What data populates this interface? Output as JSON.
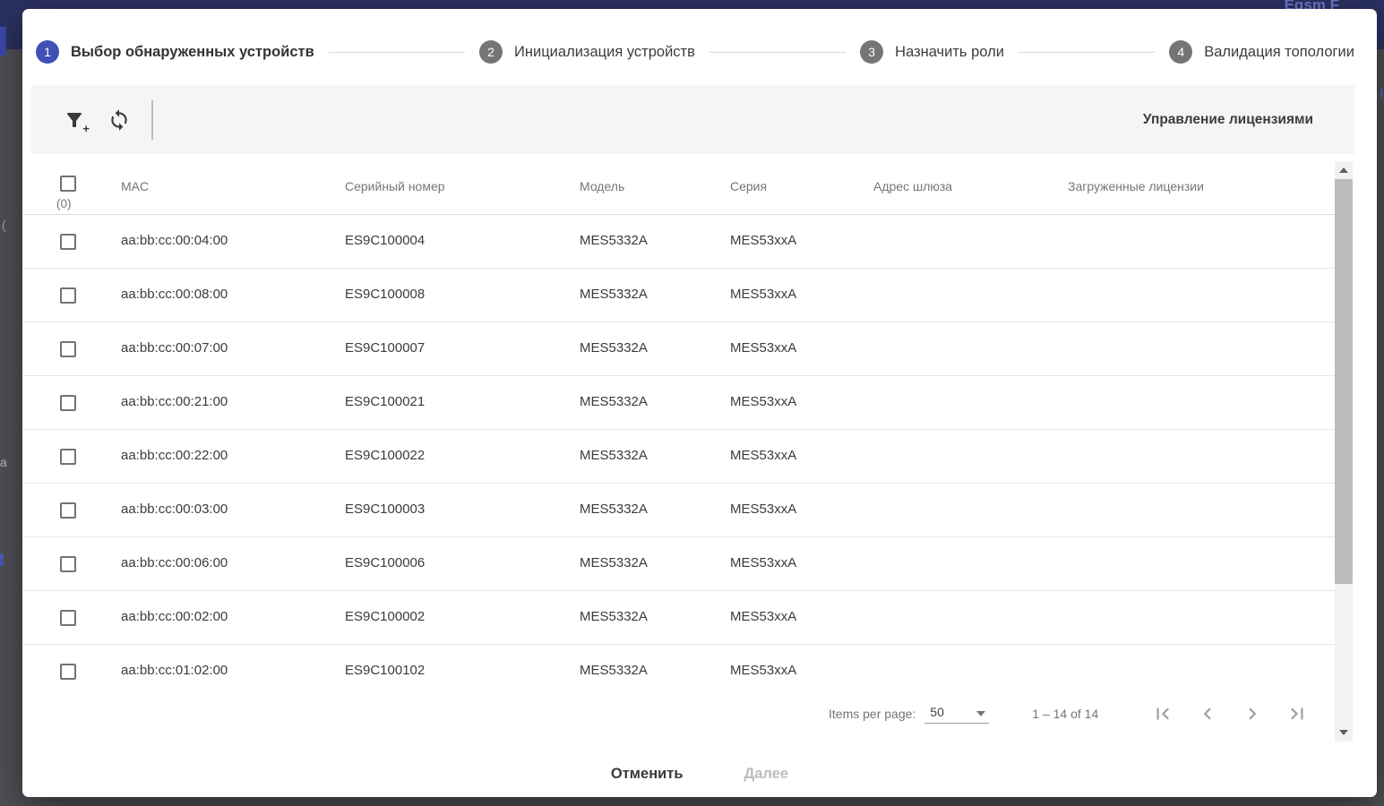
{
  "colors": {
    "accent": "#3f51b5",
    "step_inactive": "#757575",
    "toolbar_bg": "#f5f5f5",
    "topbar_bg": "#2b3160"
  },
  "backdrop": {
    "topbar_fragment": "Eqsm F",
    "edge_fragments": {
      "left_paren": "(",
      "left_a": "a",
      "right_i": "i"
    }
  },
  "stepper": {
    "steps": [
      {
        "number": "1",
        "label": "Выбор обнаруженных устройств",
        "active": true
      },
      {
        "number": "2",
        "label": "Инициализация устройств",
        "active": false
      },
      {
        "number": "3",
        "label": "Назначить роли",
        "active": false
      },
      {
        "number": "4",
        "label": "Валидация топологии",
        "active": false
      }
    ]
  },
  "toolbar": {
    "icons": [
      "filter-add-icon",
      "refresh-icon"
    ],
    "license_button_label": "Управление лицензиями"
  },
  "table": {
    "selected_count": "(0)",
    "columns": [
      "MAC",
      "Серийный номер",
      "Модель",
      "Серия",
      "Адрес шлюза",
      "Загруженные лицензии"
    ],
    "rows": [
      {
        "mac": "aa:bb:cc:00:04:00",
        "serial": "ES9C100004",
        "model": "MES5332A",
        "series": "MES53xxA",
        "gateway": "",
        "licenses": ""
      },
      {
        "mac": "aa:bb:cc:00:08:00",
        "serial": "ES9C100008",
        "model": "MES5332A",
        "series": "MES53xxA",
        "gateway": "",
        "licenses": ""
      },
      {
        "mac": "aa:bb:cc:00:07:00",
        "serial": "ES9C100007",
        "model": "MES5332A",
        "series": "MES53xxA",
        "gateway": "",
        "licenses": ""
      },
      {
        "mac": "aa:bb:cc:00:21:00",
        "serial": "ES9C100021",
        "model": "MES5332A",
        "series": "MES53xxA",
        "gateway": "",
        "licenses": ""
      },
      {
        "mac": "aa:bb:cc:00:22:00",
        "serial": "ES9C100022",
        "model": "MES5332A",
        "series": "MES53xxA",
        "gateway": "",
        "licenses": ""
      },
      {
        "mac": "aa:bb:cc:00:03:00",
        "serial": "ES9C100003",
        "model": "MES5332A",
        "series": "MES53xxA",
        "gateway": "",
        "licenses": ""
      },
      {
        "mac": "aa:bb:cc:00:06:00",
        "serial": "ES9C100006",
        "model": "MES5332A",
        "series": "MES53xxA",
        "gateway": "",
        "licenses": ""
      },
      {
        "mac": "aa:bb:cc:00:02:00",
        "serial": "ES9C100002",
        "model": "MES5332A",
        "series": "MES53xxA",
        "gateway": "",
        "licenses": ""
      },
      {
        "mac": "aa:bb:cc:01:02:00",
        "serial": "ES9C100102",
        "model": "MES5332A",
        "series": "MES53xxA",
        "gateway": "",
        "licenses": ""
      }
    ]
  },
  "paginator": {
    "items_per_page_label": "Items per page:",
    "page_size": "50",
    "range_label": "1 – 14 of 14"
  },
  "footer": {
    "cancel_label": "Отменить",
    "next_label": "Далее"
  }
}
